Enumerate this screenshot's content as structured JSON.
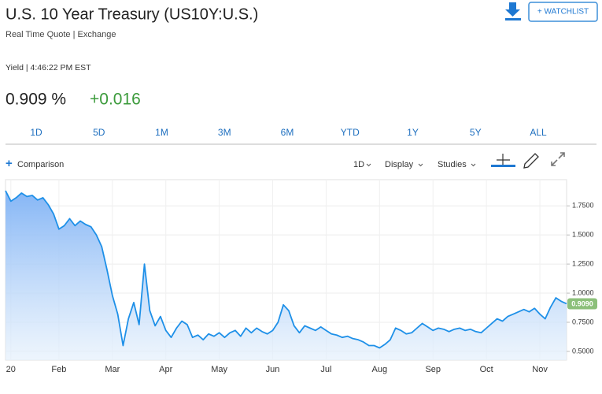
{
  "header": {
    "title": "U.S. 10 Year Treasury (US10Y:U.S.)",
    "subtitle": "Real Time Quote | Exchange",
    "watchlist": "+ WATCHLIST"
  },
  "quote": {
    "label": "Yield | 4:46:22 PM EST",
    "last": "0.909 %",
    "change": "+0.016"
  },
  "tabs": [
    "1D",
    "5D",
    "1M",
    "3M",
    "6M",
    "YTD",
    "1Y",
    "5Y",
    "ALL"
  ],
  "toolbar": {
    "comparison": "Comparison",
    "interval": "1D",
    "display": "Display",
    "studies": "Studies"
  },
  "chart_data": {
    "type": "area",
    "color": "#1e90e8",
    "categories": [
      null,
      "20",
      null,
      null,
      null,
      null,
      null,
      null,
      null,
      null,
      "Feb",
      null,
      null,
      null,
      null,
      null,
      null,
      null,
      null,
      null,
      "Mar",
      null,
      null,
      null,
      null,
      null,
      null,
      null,
      null,
      null,
      "Apr",
      null,
      null,
      null,
      null,
      null,
      null,
      null,
      null,
      null,
      "May",
      null,
      null,
      null,
      null,
      null,
      null,
      null,
      null,
      null,
      "Jun",
      null,
      null,
      null,
      null,
      null,
      null,
      null,
      null,
      null,
      "Jul",
      null,
      null,
      null,
      null,
      null,
      null,
      null,
      null,
      null,
      "Aug",
      null,
      null,
      null,
      null,
      null,
      null,
      null,
      null,
      null,
      "Sep",
      null,
      null,
      null,
      null,
      null,
      null,
      null,
      null,
      null,
      "Oct",
      null,
      null,
      null,
      null,
      null,
      null,
      null,
      null,
      null,
      "Nov",
      null,
      null,
      null,
      null,
      null
    ],
    "values": [
      1.88,
      1.79,
      1.82,
      1.86,
      1.83,
      1.84,
      1.8,
      1.82,
      1.76,
      1.68,
      1.55,
      1.58,
      1.64,
      1.58,
      1.62,
      1.59,
      1.57,
      1.5,
      1.4,
      1.2,
      0.98,
      0.82,
      0.55,
      0.78,
      0.92,
      0.73,
      1.25,
      0.85,
      0.72,
      0.8,
      0.68,
      0.62,
      0.7,
      0.76,
      0.73,
      0.62,
      0.64,
      0.6,
      0.65,
      0.63,
      0.66,
      0.62,
      0.66,
      0.68,
      0.63,
      0.7,
      0.66,
      0.7,
      0.67,
      0.65,
      0.68,
      0.75,
      0.9,
      0.85,
      0.72,
      0.66,
      0.72,
      0.7,
      0.68,
      0.71,
      0.68,
      0.65,
      0.64,
      0.62,
      0.63,
      0.61,
      0.6,
      0.58,
      0.55,
      0.55,
      0.53,
      0.56,
      0.6,
      0.7,
      0.68,
      0.65,
      0.66,
      0.7,
      0.74,
      0.71,
      0.68,
      0.7,
      0.69,
      0.67,
      0.69,
      0.7,
      0.68,
      0.69,
      0.67,
      0.66,
      0.7,
      0.74,
      0.78,
      0.76,
      0.8,
      0.82,
      0.84,
      0.86,
      0.84,
      0.87,
      0.82,
      0.78,
      0.88,
      0.96,
      0.93,
      0.909
    ],
    "current": {
      "value": 0.909,
      "label": "0.9090"
    },
    "ylim": [
      0.425,
      1.975
    ],
    "yticks": [
      {
        "value": 0.5,
        "label": "0.5000"
      },
      {
        "value": 0.75,
        "label": "0.7500"
      },
      {
        "value": 1,
        "label": "1.0000"
      },
      {
        "value": 1.25,
        "label": "1.2500"
      },
      {
        "value": 1.5,
        "label": "1.5000"
      },
      {
        "value": 1.75,
        "label": "1.7500"
      }
    ],
    "grid": true
  }
}
